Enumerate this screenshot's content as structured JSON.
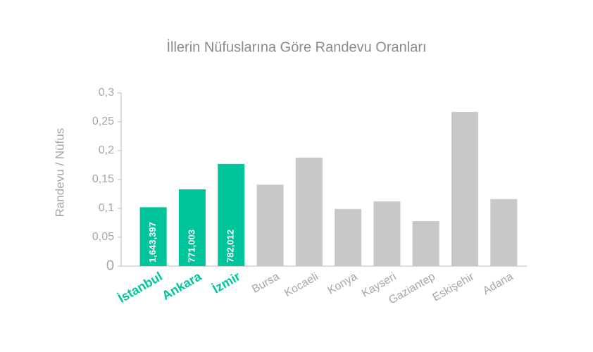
{
  "chart_data": {
    "type": "bar",
    "title": "İllerin Nüfuslarına Göre Randevu Oranları",
    "y_label": "Randevu / Nüfus",
    "categories": [
      "İstanbul",
      "Ankara",
      "İzmir",
      "Bursa",
      "Kocaeli",
      "Konya",
      "Kayseri",
      "Gaziantep",
      "Eskişehir",
      "Adana"
    ],
    "values": [
      0.102,
      0.133,
      0.177,
      0.141,
      0.188,
      0.099,
      0.112,
      0.078,
      0.267,
      0.116
    ],
    "annotations": [
      "1,643,397",
      "771,003",
      "782,012"
    ],
    "color": "#c8c8c8",
    "colors": [
      "#00c49a",
      "#00c49a",
      "#00c49a",
      "#c8c8c8",
      "#c8c8c8",
      "#c8c8c8",
      "#c8c8c8",
      "#c8c8c8",
      "#c8c8c8",
      "#c8c8c8"
    ],
    "ylim": [
      0,
      0.3
    ],
    "yticks": [
      0,
      {
        "value": 0.05,
        "label": "0,05"
      },
      {
        "value": 0.1,
        "label": "0,1"
      },
      {
        "value": 0.15,
        "label": "0,15"
      },
      {
        "value": 0.2,
        "label": "0,2"
      },
      {
        "value": 0.25,
        "label": "0,25"
      },
      {
        "value": 0.3,
        "label": "0,3"
      }
    ],
    "grid": false
  }
}
